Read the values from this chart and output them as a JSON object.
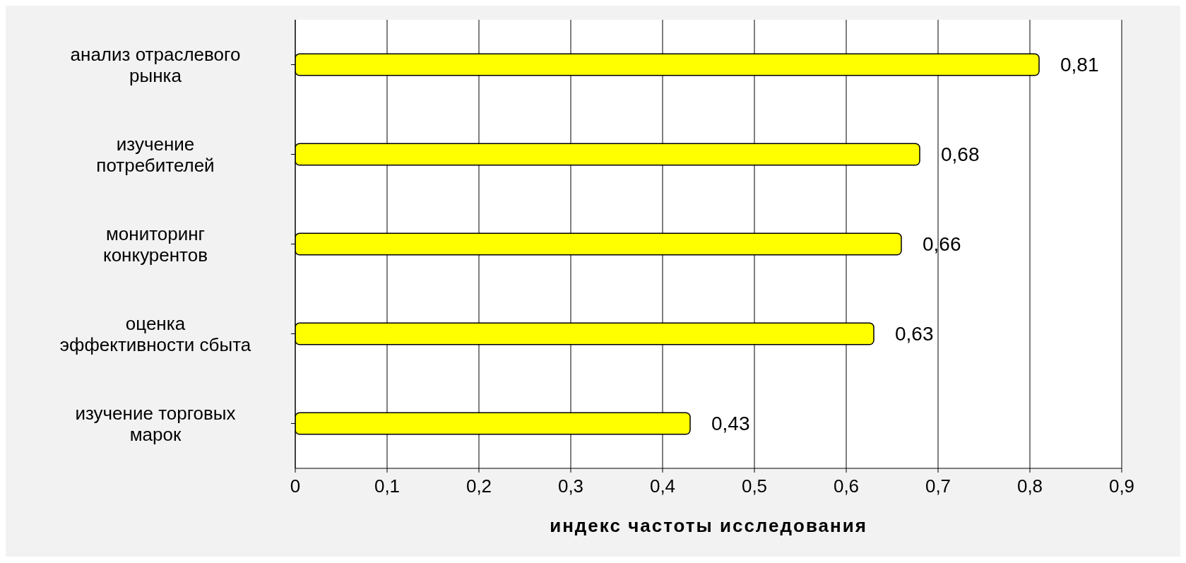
{
  "chart_data": {
    "type": "bar",
    "orientation": "horizontal",
    "xlabel": "индекс частоты исследования",
    "categories": [
      "анализ отраслевого рынка",
      "изучение потребителей",
      "мониторинг конкурентов",
      "оценка эффективности сбыта",
      "изучение торговых марок"
    ],
    "values": [
      0.81,
      0.68,
      0.66,
      0.63,
      0.43
    ],
    "value_labels": [
      "0,81",
      "0,68",
      "0,66",
      "0,63",
      "0,43"
    ],
    "color": "#ffff00",
    "xlim": [
      0,
      0.9
    ],
    "xticks": [
      {
        "value": 0,
        "label": "0"
      },
      {
        "value": 0.1,
        "label": "0,1"
      },
      {
        "value": 0.2,
        "label": "0,2"
      },
      {
        "value": 0.3,
        "label": "0,3"
      },
      {
        "value": 0.4,
        "label": "0,4"
      },
      {
        "value": 0.5,
        "label": "0,5"
      },
      {
        "value": 0.6,
        "label": "0,6"
      },
      {
        "value": 0.7,
        "label": "0,7"
      },
      {
        "value": 0.8,
        "label": "0,8"
      },
      {
        "value": 0.9,
        "label": "0,9"
      }
    ],
    "grid": "x"
  }
}
